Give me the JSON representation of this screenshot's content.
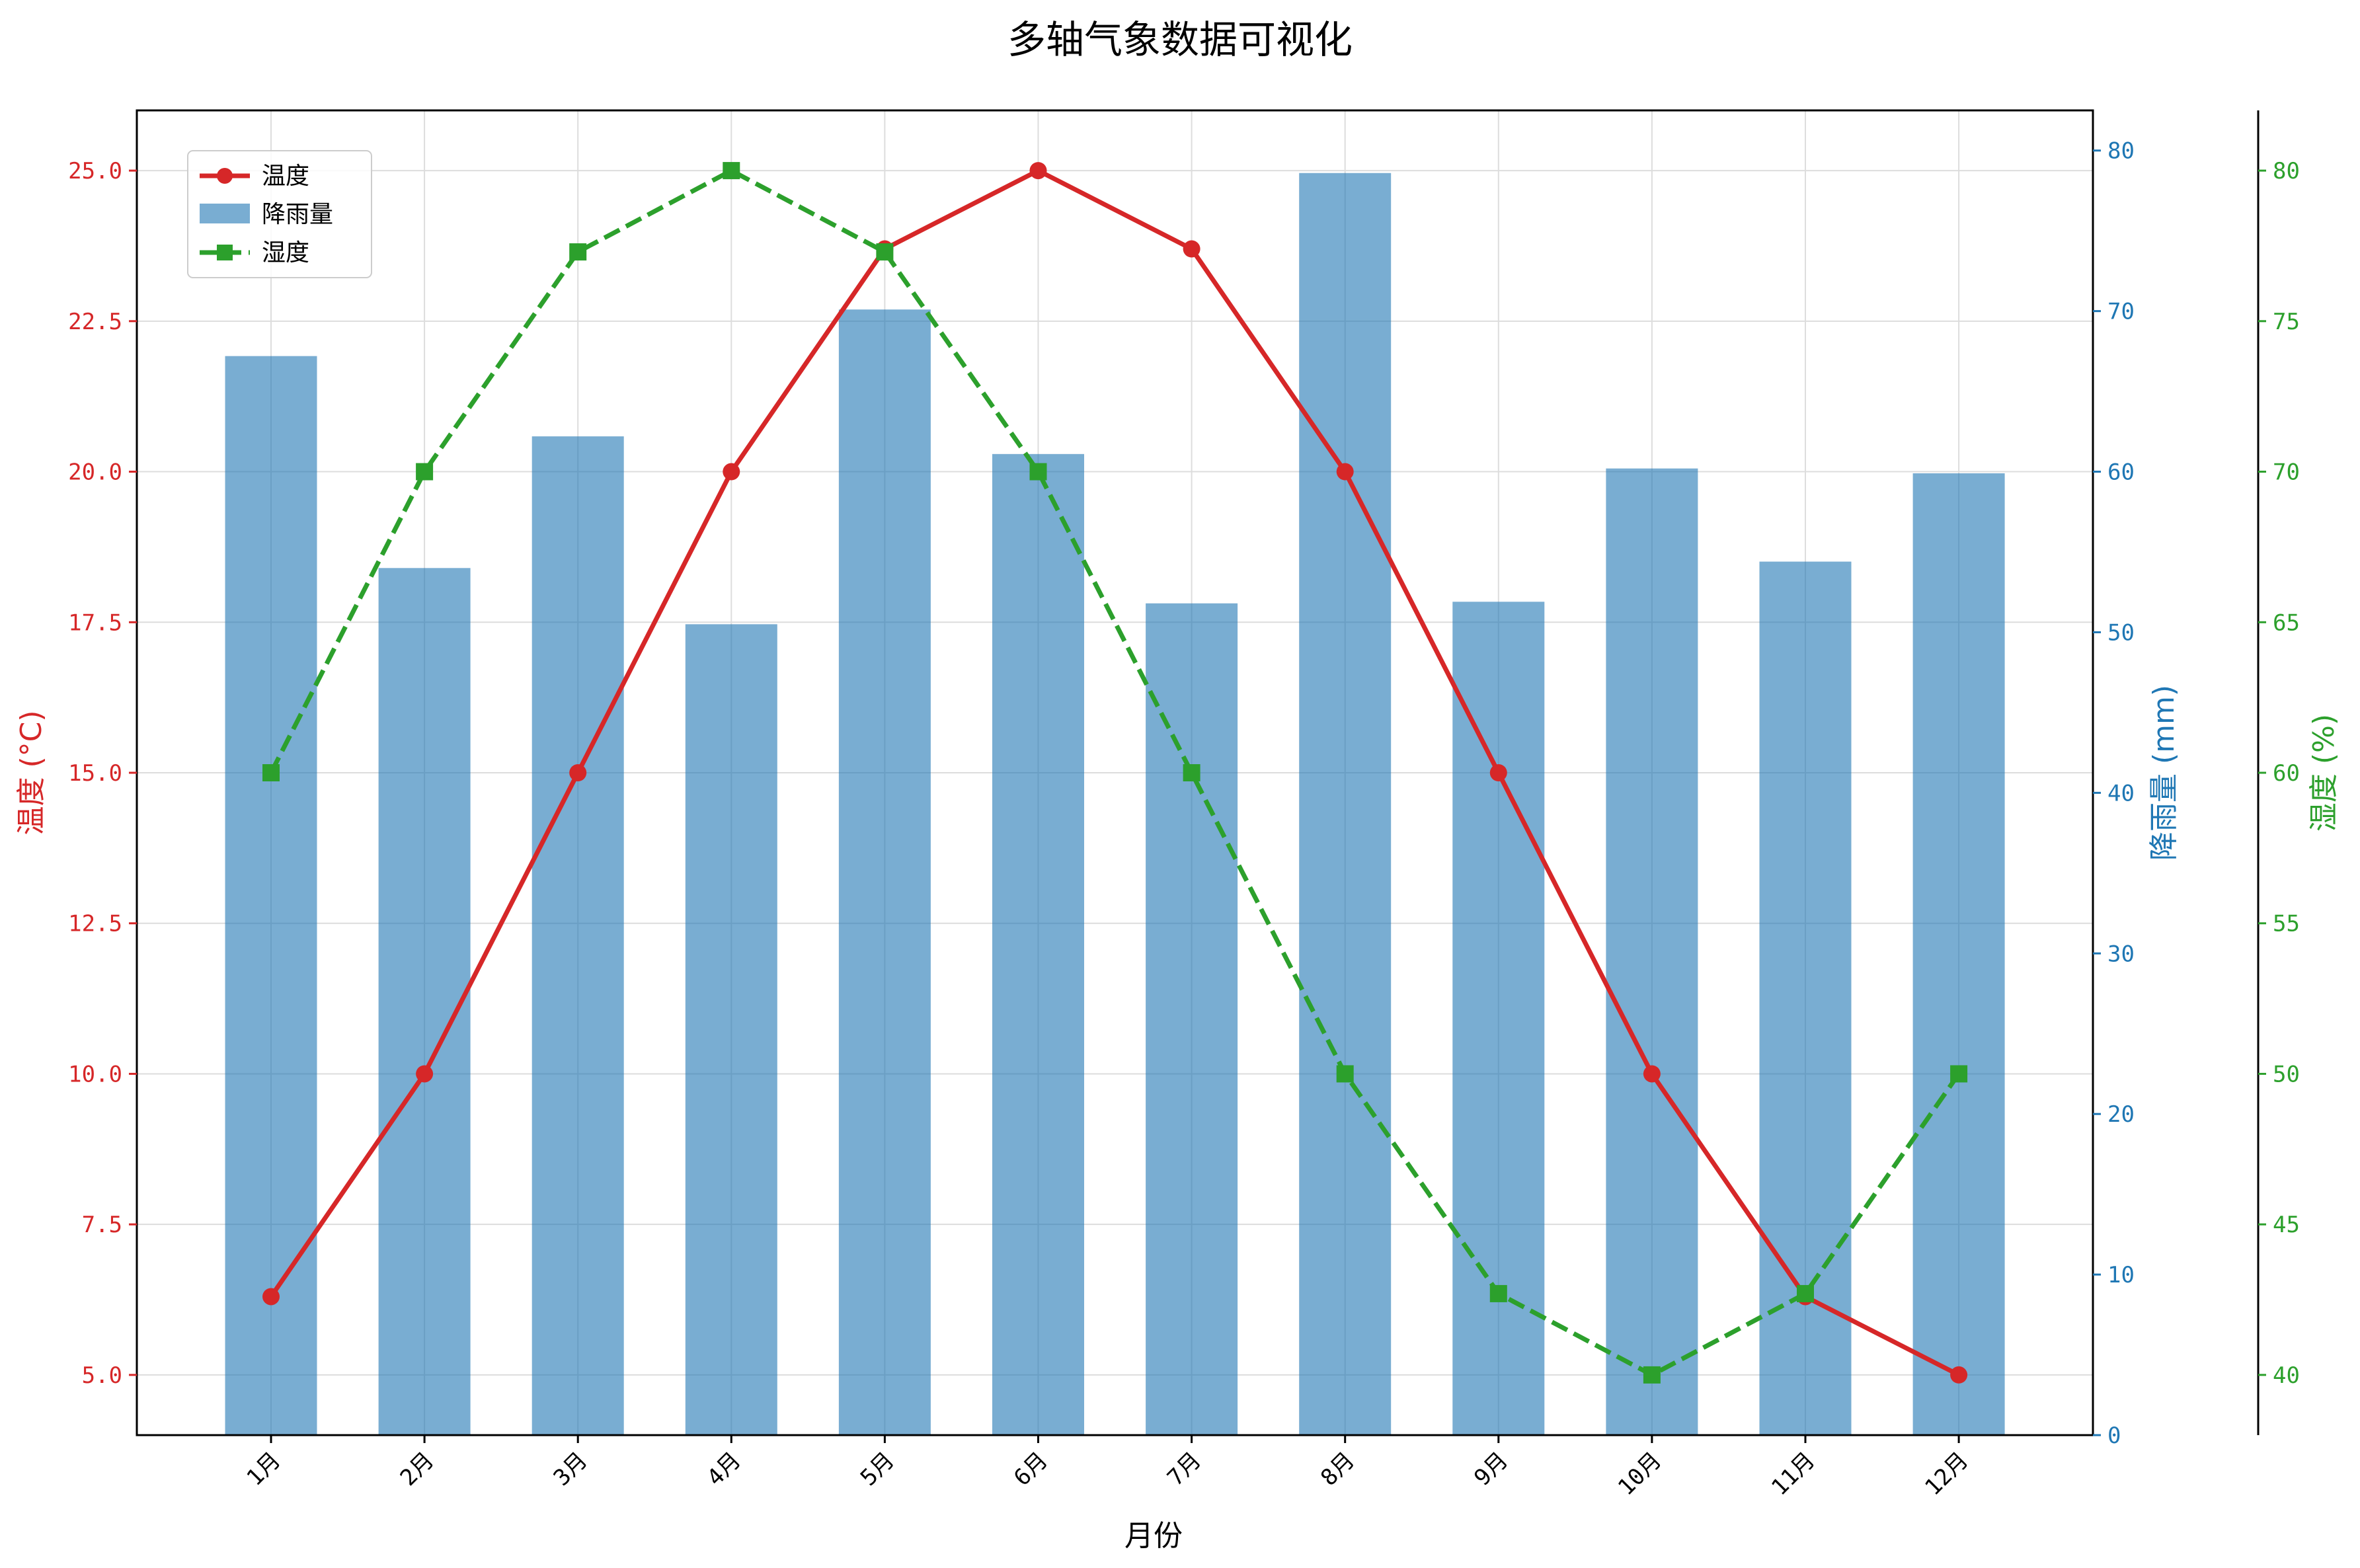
{
  "chart_data": {
    "type": "bar+line",
    "title": "多轴气象数据可视化",
    "categories": [
      "1月",
      "2月",
      "3月",
      "4月",
      "5月",
      "6月",
      "7月",
      "8月",
      "9月",
      "10月",
      "11月",
      "12月"
    ],
    "xlabel": "月份",
    "series": [
      {
        "name": "温度",
        "kind": "line",
        "axis": "left",
        "color": "#d62728",
        "marker": "circle",
        "line_style": "solid",
        "values": [
          6.3,
          10.0,
          15.0,
          20.0,
          23.7,
          25.0,
          23.7,
          20.0,
          15.0,
          10.0,
          6.3,
          5.0
        ]
      },
      {
        "name": "降雨量",
        "kind": "bar",
        "axis": "right",
        "color": "#1f77b4",
        "values": [
          67.2,
          54.0,
          62.2,
          50.5,
          70.1,
          61.1,
          51.8,
          78.6,
          51.9,
          60.2,
          54.4,
          59.9
        ]
      },
      {
        "name": "湿度",
        "kind": "line",
        "axis": "right2",
        "color": "#2ca02c",
        "marker": "square",
        "line_style": "dashed",
        "values": [
          60,
          70,
          77.3,
          80,
          77.3,
          70,
          60,
          50,
          42.7,
          40,
          42.7,
          50
        ]
      }
    ],
    "axes": {
      "left": {
        "label": "温度 (°C)",
        "color": "#d62728",
        "ylim": [
          4.0,
          26.0
        ],
        "ticks": [
          5.0,
          7.5,
          10.0,
          12.5,
          15.0,
          17.5,
          20.0,
          22.5,
          25.0
        ],
        "tick_labels": [
          "5.0",
          "7.5",
          "10.0",
          "12.5",
          "15.0",
          "17.5",
          "20.0",
          "22.5",
          "25.0"
        ]
      },
      "right": {
        "label": "降雨量 (mm)",
        "color": "#1f77b4",
        "ylim": [
          0,
          82.5
        ],
        "ticks": [
          0,
          10,
          20,
          30,
          40,
          50,
          60,
          70,
          80
        ],
        "tick_labels": [
          "0",
          "10",
          "20",
          "30",
          "40",
          "50",
          "60",
          "70",
          "80"
        ]
      },
      "right2": {
        "label": "湿度 (%)",
        "color": "#2ca02c",
        "ylim": [
          38,
          82
        ],
        "ticks": [
          40,
          45,
          50,
          55,
          60,
          65,
          70,
          75,
          80
        ],
        "tick_labels": [
          "40",
          "45",
          "50",
          "55",
          "60",
          "65",
          "70",
          "75",
          "80"
        ]
      }
    },
    "grid": true,
    "legend": {
      "position": "top-left",
      "entries": [
        "温度",
        "降雨量",
        "湿度"
      ]
    }
  }
}
